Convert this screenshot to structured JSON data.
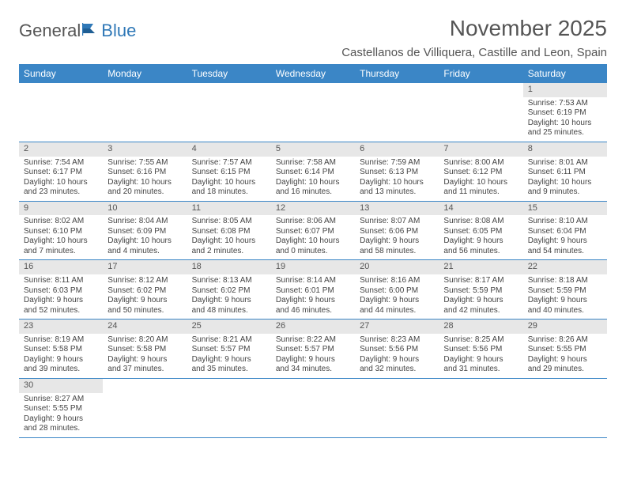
{
  "logo": {
    "part1": "General",
    "part2": "Blue"
  },
  "title": "November 2025",
  "location": "Castellanos de Villiquera, Castille and Leon, Spain",
  "colors": {
    "header_bg": "#3b86c6",
    "header_text": "#ffffff",
    "daynum_bg": "#e7e7e7",
    "border": "#3b86c6",
    "text": "#444444",
    "logo_gray": "#555555",
    "logo_blue": "#2f78b7"
  },
  "day_headers": [
    "Sunday",
    "Monday",
    "Tuesday",
    "Wednesday",
    "Thursday",
    "Friday",
    "Saturday"
  ],
  "weeks": [
    [
      {
        "n": "",
        "sr": "",
        "ss": "",
        "dl": ""
      },
      {
        "n": "",
        "sr": "",
        "ss": "",
        "dl": ""
      },
      {
        "n": "",
        "sr": "",
        "ss": "",
        "dl": ""
      },
      {
        "n": "",
        "sr": "",
        "ss": "",
        "dl": ""
      },
      {
        "n": "",
        "sr": "",
        "ss": "",
        "dl": ""
      },
      {
        "n": "",
        "sr": "",
        "ss": "",
        "dl": ""
      },
      {
        "n": "1",
        "sr": "Sunrise: 7:53 AM",
        "ss": "Sunset: 6:19 PM",
        "dl": "Daylight: 10 hours and 25 minutes."
      }
    ],
    [
      {
        "n": "2",
        "sr": "Sunrise: 7:54 AM",
        "ss": "Sunset: 6:17 PM",
        "dl": "Daylight: 10 hours and 23 minutes."
      },
      {
        "n": "3",
        "sr": "Sunrise: 7:55 AM",
        "ss": "Sunset: 6:16 PM",
        "dl": "Daylight: 10 hours and 20 minutes."
      },
      {
        "n": "4",
        "sr": "Sunrise: 7:57 AM",
        "ss": "Sunset: 6:15 PM",
        "dl": "Daylight: 10 hours and 18 minutes."
      },
      {
        "n": "5",
        "sr": "Sunrise: 7:58 AM",
        "ss": "Sunset: 6:14 PM",
        "dl": "Daylight: 10 hours and 16 minutes."
      },
      {
        "n": "6",
        "sr": "Sunrise: 7:59 AM",
        "ss": "Sunset: 6:13 PM",
        "dl": "Daylight: 10 hours and 13 minutes."
      },
      {
        "n": "7",
        "sr": "Sunrise: 8:00 AM",
        "ss": "Sunset: 6:12 PM",
        "dl": "Daylight: 10 hours and 11 minutes."
      },
      {
        "n": "8",
        "sr": "Sunrise: 8:01 AM",
        "ss": "Sunset: 6:11 PM",
        "dl": "Daylight: 10 hours and 9 minutes."
      }
    ],
    [
      {
        "n": "9",
        "sr": "Sunrise: 8:02 AM",
        "ss": "Sunset: 6:10 PM",
        "dl": "Daylight: 10 hours and 7 minutes."
      },
      {
        "n": "10",
        "sr": "Sunrise: 8:04 AM",
        "ss": "Sunset: 6:09 PM",
        "dl": "Daylight: 10 hours and 4 minutes."
      },
      {
        "n": "11",
        "sr": "Sunrise: 8:05 AM",
        "ss": "Sunset: 6:08 PM",
        "dl": "Daylight: 10 hours and 2 minutes."
      },
      {
        "n": "12",
        "sr": "Sunrise: 8:06 AM",
        "ss": "Sunset: 6:07 PM",
        "dl": "Daylight: 10 hours and 0 minutes."
      },
      {
        "n": "13",
        "sr": "Sunrise: 8:07 AM",
        "ss": "Sunset: 6:06 PM",
        "dl": "Daylight: 9 hours and 58 minutes."
      },
      {
        "n": "14",
        "sr": "Sunrise: 8:08 AM",
        "ss": "Sunset: 6:05 PM",
        "dl": "Daylight: 9 hours and 56 minutes."
      },
      {
        "n": "15",
        "sr": "Sunrise: 8:10 AM",
        "ss": "Sunset: 6:04 PM",
        "dl": "Daylight: 9 hours and 54 minutes."
      }
    ],
    [
      {
        "n": "16",
        "sr": "Sunrise: 8:11 AM",
        "ss": "Sunset: 6:03 PM",
        "dl": "Daylight: 9 hours and 52 minutes."
      },
      {
        "n": "17",
        "sr": "Sunrise: 8:12 AM",
        "ss": "Sunset: 6:02 PM",
        "dl": "Daylight: 9 hours and 50 minutes."
      },
      {
        "n": "18",
        "sr": "Sunrise: 8:13 AM",
        "ss": "Sunset: 6:02 PM",
        "dl": "Daylight: 9 hours and 48 minutes."
      },
      {
        "n": "19",
        "sr": "Sunrise: 8:14 AM",
        "ss": "Sunset: 6:01 PM",
        "dl": "Daylight: 9 hours and 46 minutes."
      },
      {
        "n": "20",
        "sr": "Sunrise: 8:16 AM",
        "ss": "Sunset: 6:00 PM",
        "dl": "Daylight: 9 hours and 44 minutes."
      },
      {
        "n": "21",
        "sr": "Sunrise: 8:17 AM",
        "ss": "Sunset: 5:59 PM",
        "dl": "Daylight: 9 hours and 42 minutes."
      },
      {
        "n": "22",
        "sr": "Sunrise: 8:18 AM",
        "ss": "Sunset: 5:59 PM",
        "dl": "Daylight: 9 hours and 40 minutes."
      }
    ],
    [
      {
        "n": "23",
        "sr": "Sunrise: 8:19 AM",
        "ss": "Sunset: 5:58 PM",
        "dl": "Daylight: 9 hours and 39 minutes."
      },
      {
        "n": "24",
        "sr": "Sunrise: 8:20 AM",
        "ss": "Sunset: 5:58 PM",
        "dl": "Daylight: 9 hours and 37 minutes."
      },
      {
        "n": "25",
        "sr": "Sunrise: 8:21 AM",
        "ss": "Sunset: 5:57 PM",
        "dl": "Daylight: 9 hours and 35 minutes."
      },
      {
        "n": "26",
        "sr": "Sunrise: 8:22 AM",
        "ss": "Sunset: 5:57 PM",
        "dl": "Daylight: 9 hours and 34 minutes."
      },
      {
        "n": "27",
        "sr": "Sunrise: 8:23 AM",
        "ss": "Sunset: 5:56 PM",
        "dl": "Daylight: 9 hours and 32 minutes."
      },
      {
        "n": "28",
        "sr": "Sunrise: 8:25 AM",
        "ss": "Sunset: 5:56 PM",
        "dl": "Daylight: 9 hours and 31 minutes."
      },
      {
        "n": "29",
        "sr": "Sunrise: 8:26 AM",
        "ss": "Sunset: 5:55 PM",
        "dl": "Daylight: 9 hours and 29 minutes."
      }
    ],
    [
      {
        "n": "30",
        "sr": "Sunrise: 8:27 AM",
        "ss": "Sunset: 5:55 PM",
        "dl": "Daylight: 9 hours and 28 minutes."
      },
      {
        "n": "",
        "sr": "",
        "ss": "",
        "dl": ""
      },
      {
        "n": "",
        "sr": "",
        "ss": "",
        "dl": ""
      },
      {
        "n": "",
        "sr": "",
        "ss": "",
        "dl": ""
      },
      {
        "n": "",
        "sr": "",
        "ss": "",
        "dl": ""
      },
      {
        "n": "",
        "sr": "",
        "ss": "",
        "dl": ""
      },
      {
        "n": "",
        "sr": "",
        "ss": "",
        "dl": ""
      }
    ]
  ]
}
